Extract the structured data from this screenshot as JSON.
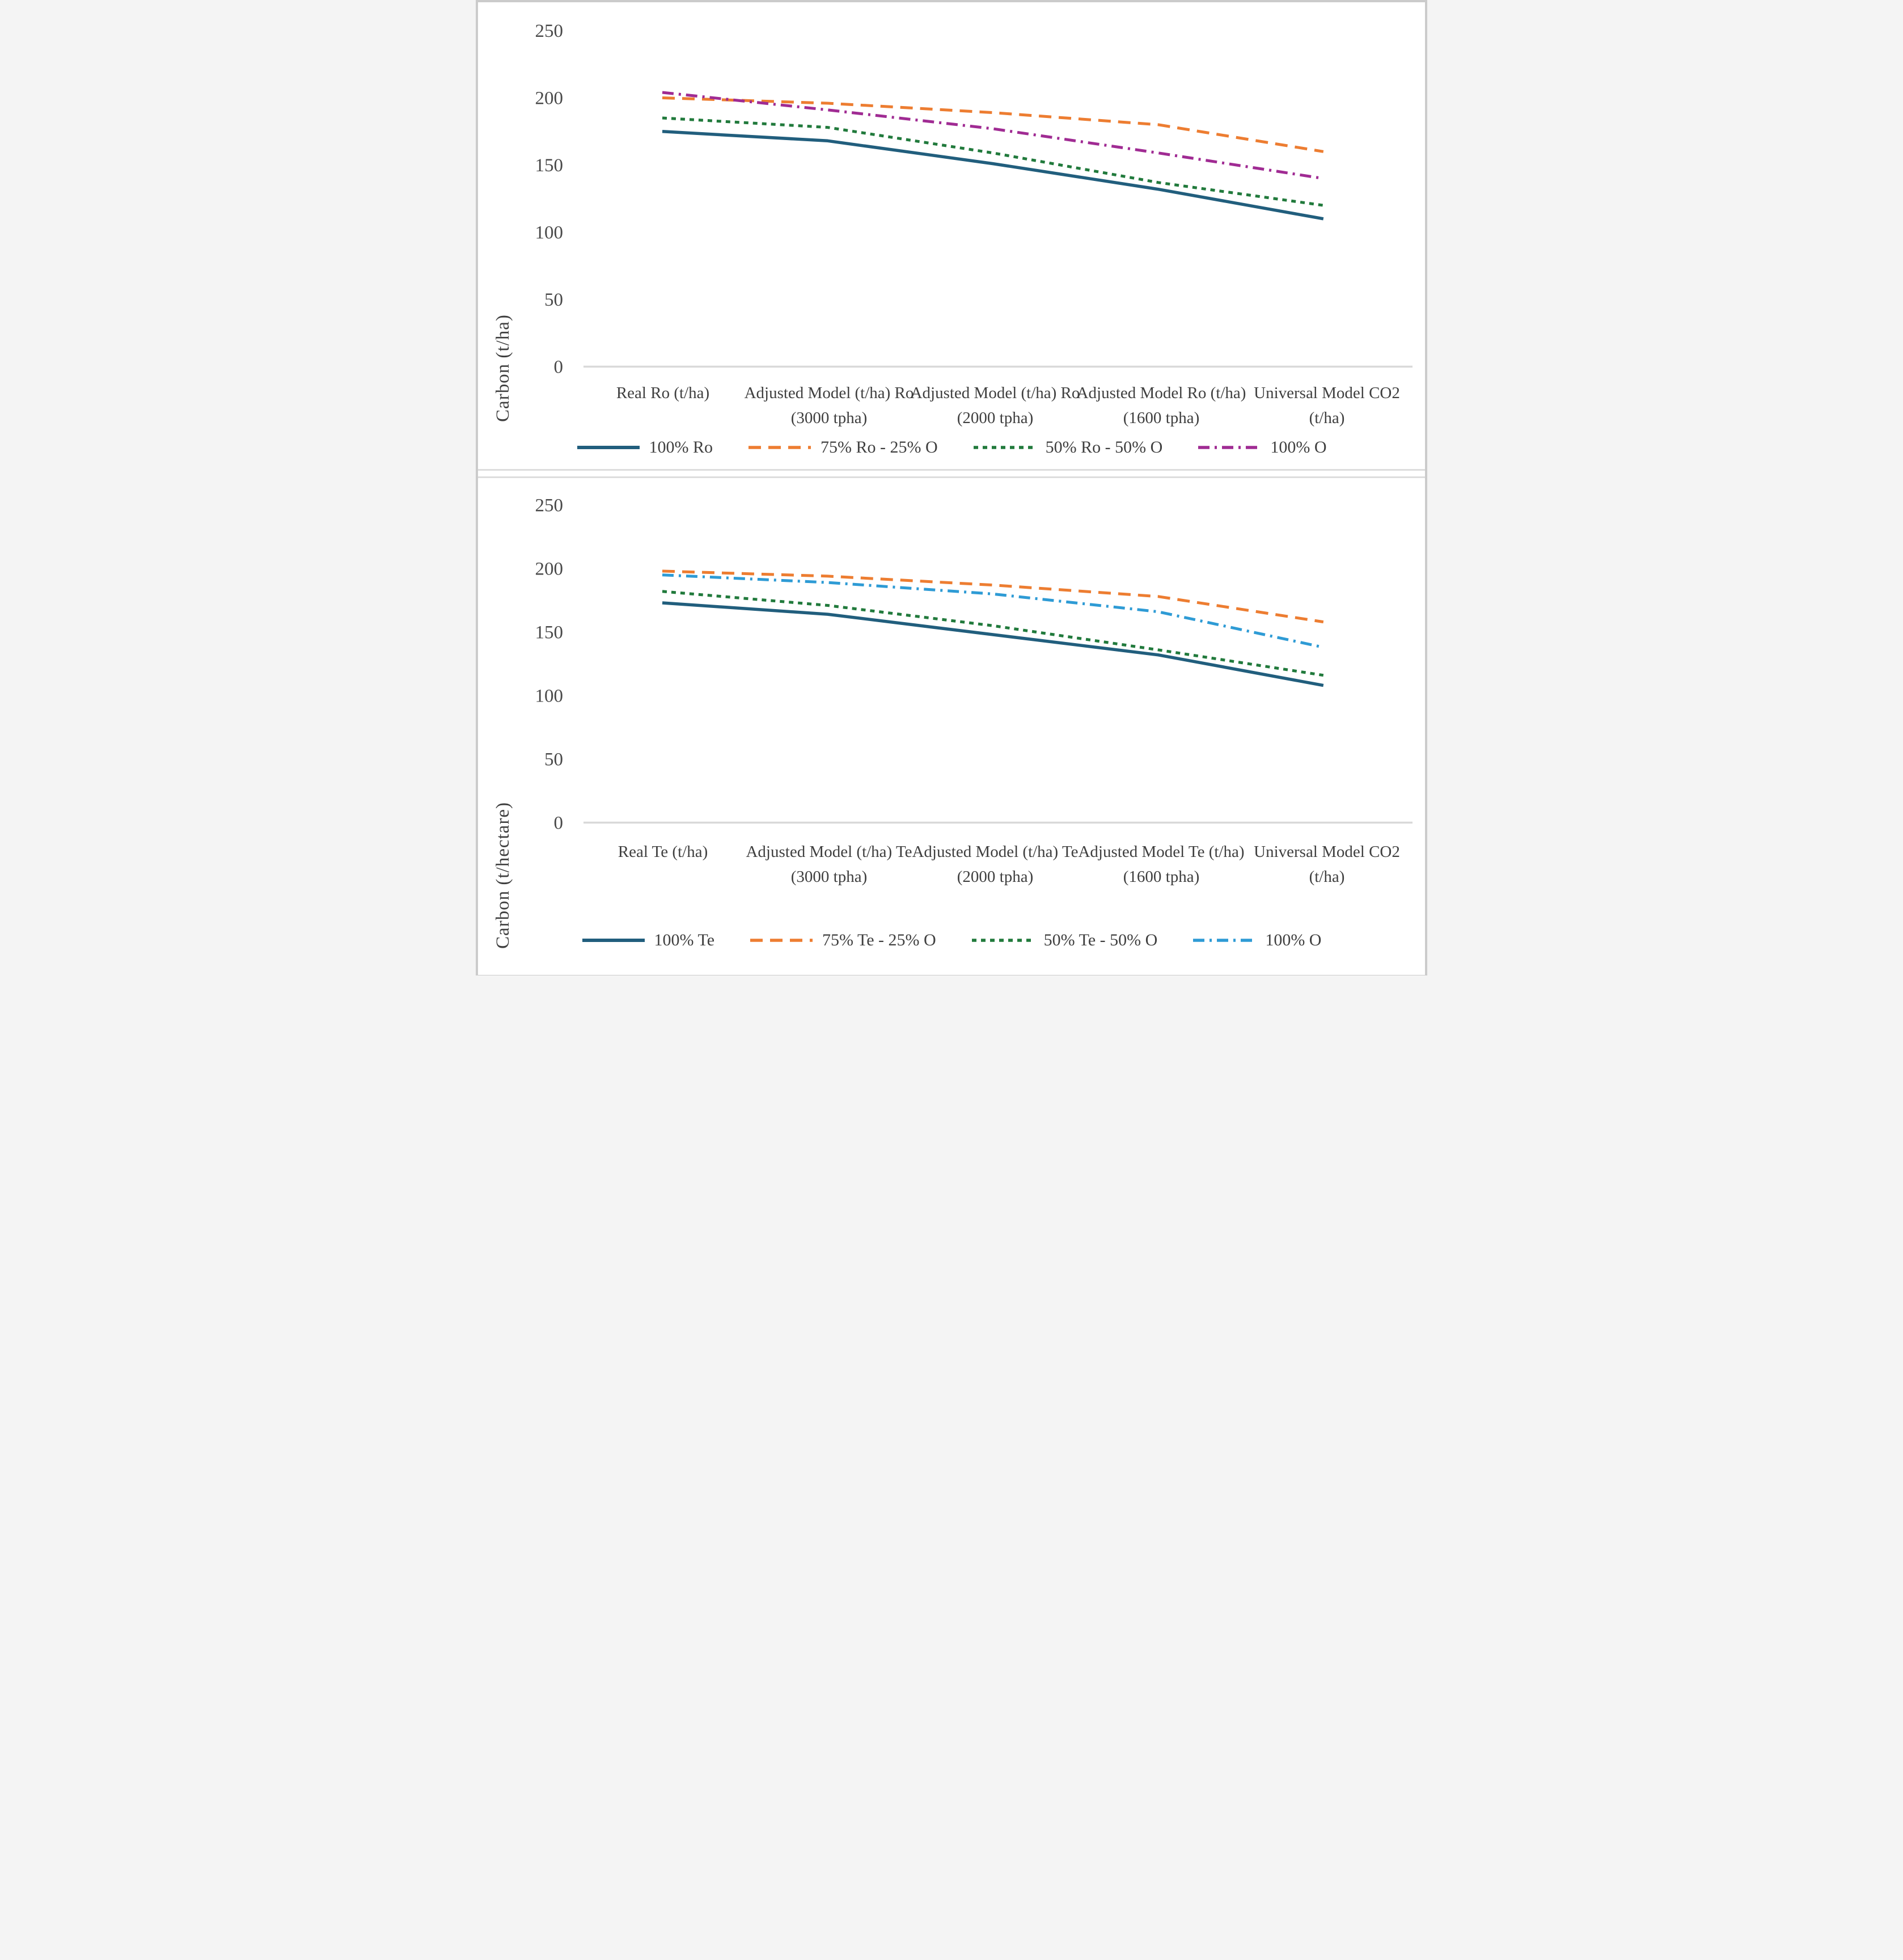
{
  "page": {
    "background": "#ffffff",
    "frame_color": "#cbcbcb",
    "axis_line_color": "#d9d9d9",
    "tick_text_color": "#4a4a4a",
    "label_text_color": "#3f3f3f"
  },
  "chart_data": [
    {
      "type": "line",
      "position": "top",
      "title": "",
      "xlabel": "",
      "ylabel": "Carbon (t/ha)",
      "ylim": [
        0,
        250
      ],
      "y_ticks": [
        "250",
        "200",
        "150",
        "100",
        "50",
        "0"
      ],
      "grid": "off",
      "legend_position": "bottom",
      "categories": [
        "Real Ro (t/ha)",
        "Adjusted Model (t/ha) Ro (3000 tpha)",
        "Adjusted Model (t/ha) Ro (2000 tpha)",
        "Adjusted Model Ro (t/ha) (1600 tpha)",
        "Universal Model CO2 (t/ha)"
      ],
      "series": [
        {
          "name": "100% Ro",
          "color": "#215e7d",
          "line_style": "solid",
          "values": [
            175,
            168,
            151,
            132,
            110
          ]
        },
        {
          "name": "75% Ro - 25% O",
          "color": "#ed7d31",
          "line_style": "dashed",
          "values": [
            200,
            196,
            189,
            180,
            160
          ]
        },
        {
          "name": "50% Ro - 50% O",
          "color": "#217a3c",
          "line_style": "dotted",
          "values": [
            185,
            178,
            159,
            137,
            120
          ]
        },
        {
          "name": "100% O",
          "color": "#a02b93",
          "line_style": "dashdot",
          "values": [
            204,
            191,
            177,
            159,
            140
          ]
        }
      ]
    },
    {
      "type": "line",
      "position": "bottom",
      "title": "",
      "xlabel": "",
      "ylabel": "Carbon  (t/hectare)",
      "ylim": [
        0,
        250
      ],
      "y_ticks": [
        "250",
        "200",
        "150",
        "100",
        "50",
        "0"
      ],
      "grid": "off",
      "legend_position": "bottom",
      "categories": [
        "Real Te (t/ha)",
        "Adjusted Model (t/ha) Te (3000 tpha)",
        "Adjusted Model (t/ha) Te (2000 tpha)",
        "Adjusted Model Te (t/ha) (1600 tpha)",
        "Universal Model CO2 (t/ha)"
      ],
      "series": [
        {
          "name": "100% Te",
          "color": "#215e7d",
          "line_style": "solid",
          "values": [
            173,
            164,
            148,
            132,
            108
          ]
        },
        {
          "name": "75% Te - 25% O",
          "color": "#ed7d31",
          "line_style": "dashed",
          "values": [
            198,
            194,
            187,
            178,
            158
          ]
        },
        {
          "name": "50% Te - 50% O",
          "color": "#217a3c",
          "line_style": "dotted",
          "values": [
            182,
            171,
            155,
            136,
            116
          ]
        },
        {
          "name": "100% O",
          "color": "#2e9bd5",
          "line_style": "dashdot",
          "values": [
            195,
            189,
            180,
            166,
            138
          ]
        }
      ]
    }
  ]
}
